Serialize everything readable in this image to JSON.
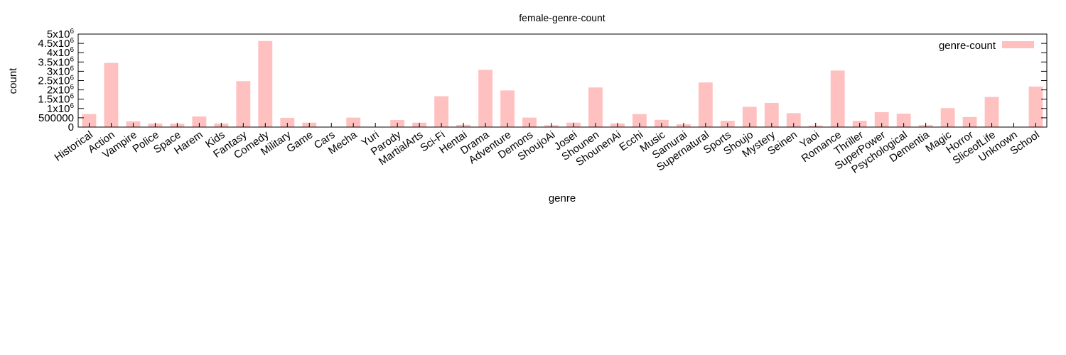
{
  "chart_data": {
    "type": "bar",
    "title": "female-genre-count",
    "xlabel": "genre",
    "ylabel": "count",
    "ylim": [
      0,
      5000000
    ],
    "y_ticks": [
      {
        "value": 0,
        "label": "0"
      },
      {
        "value": 500000,
        "label": "500000"
      },
      {
        "value": 1000000,
        "label": "1x10^6"
      },
      {
        "value": 1500000,
        "label": "1.5x10^6"
      },
      {
        "value": 2000000,
        "label": "2x10^6"
      },
      {
        "value": 2500000,
        "label": "2.5x10^6"
      },
      {
        "value": 3000000,
        "label": "3x10^6"
      },
      {
        "value": 3500000,
        "label": "3.5x10^6"
      },
      {
        "value": 4000000,
        "label": "4x10^6"
      },
      {
        "value": 4500000,
        "label": "4.5x10^6"
      },
      {
        "value": 5000000,
        "label": "5x10^6"
      }
    ],
    "grid": false,
    "legend": {
      "position": "top-right",
      "entries": [
        "genre-count"
      ]
    },
    "bar_color": "#ffc0c0",
    "categories": [
      "Historical",
      "Action",
      "Vampire",
      "Police",
      "Space",
      "Harem",
      "Kids",
      "Fantasy",
      "Comedy",
      "Military",
      "Game",
      "Cars",
      "Mecha",
      "Yuri",
      "Parody",
      "MartialArts",
      "Sci-Fi",
      "Hentai",
      "Drama",
      "Adventure",
      "Demons",
      "ShoujoAi",
      "Josei",
      "Shounen",
      "ShounenAi",
      "Ecchi",
      "Music",
      "Samurai",
      "Supernatural",
      "Sports",
      "Shoujo",
      "Mystery",
      "Seinen",
      "Yaoi",
      "Romance",
      "Thriller",
      "SuperPower",
      "Psychological",
      "Dementia",
      "Magic",
      "Horror",
      "SliceofLife",
      "Unknown",
      "School"
    ],
    "series": [
      {
        "name": "genre-count",
        "values": [
          700000,
          3450000,
          310000,
          190000,
          180000,
          570000,
          190000,
          2470000,
          4630000,
          500000,
          240000,
          20000,
          510000,
          20000,
          380000,
          240000,
          1660000,
          120000,
          3080000,
          1970000,
          510000,
          100000,
          240000,
          2130000,
          190000,
          700000,
          390000,
          150000,
          2400000,
          340000,
          1090000,
          1300000,
          750000,
          80000,
          3040000,
          340000,
          800000,
          720000,
          110000,
          1020000,
          540000,
          1620000,
          20000,
          2180000
        ]
      }
    ]
  }
}
